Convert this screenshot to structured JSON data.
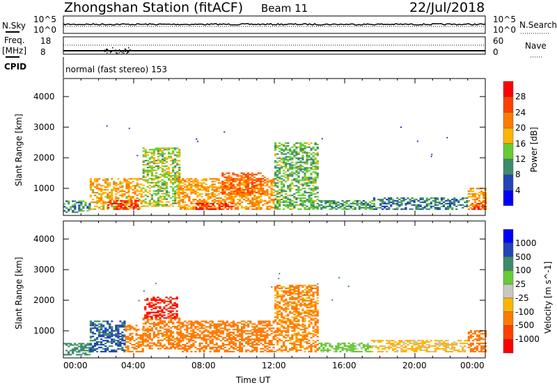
{
  "header": {
    "title": "Zhongshan Station (fitACF)",
    "beam": "Beam 11",
    "date": "22/Jul/2018"
  },
  "nsky": {
    "left_label": "N.Sky",
    "right_label": "N.Search",
    "ytick_top": "10^5",
    "ytick_bottom": "10^0"
  },
  "freq": {
    "left_label": "Freq.",
    "unit": "[MHz]",
    "ytick_top": "18",
    "ytick_bottom": "8",
    "right_label": "Nave",
    "rtick_top": "60",
    "rtick_bottom": "0"
  },
  "cpid": {
    "label": "CPID",
    "value": "normal (fast stereo) 153"
  },
  "chart_data": [
    {
      "type": "heatmap",
      "name": "power",
      "ylabel": "Slant Range [km]",
      "xlabel": "Time UT",
      "xlim": [
        0,
        24
      ],
      "ylim": [
        115,
        4590
      ],
      "yticks": [
        "1000",
        "2000",
        "3000",
        "4000"
      ],
      "colorbar": {
        "label": "Power [dB]",
        "ticks": [
          "28",
          "24",
          "20",
          "16",
          "12",
          "8",
          "4"
        ],
        "colors": [
          "#0000ff",
          "#2244b4",
          "#3e8a6c",
          "#66cc33",
          "#ffb400",
          "#ff7a00",
          "#ff4000",
          "#ff0000"
        ]
      },
      "patches": [
        [
          0,
          1.5,
          200,
          600,
          10
        ],
        [
          1.5,
          4.5,
          300,
          1300,
          19
        ],
        [
          2.5,
          4.2,
          300,
          600,
          28
        ],
        [
          4.5,
          6.6,
          400,
          2300,
          15
        ],
        [
          6.5,
          12,
          300,
          1300,
          20
        ],
        [
          7.5,
          9.6,
          300,
          500,
          28
        ],
        [
          9,
          11.5,
          800,
          1500,
          24
        ],
        [
          12,
          14.5,
          300,
          2500,
          13
        ],
        [
          14.5,
          17.5,
          300,
          600,
          11
        ],
        [
          17.5,
          23,
          300,
          700,
          9
        ],
        [
          23,
          24,
          300,
          1000,
          20
        ],
        [
          23.2,
          24,
          300,
          500,
          28
        ]
      ]
    },
    {
      "type": "heatmap",
      "name": "velocity",
      "ylabel": "Slant Range [km]",
      "xlabel": "Time UT",
      "xlim": [
        0,
        24
      ],
      "ylim": [
        115,
        4590
      ],
      "yticks": [
        "1000",
        "2000",
        "3000",
        "4000"
      ],
      "colorbar": {
        "label": "Velocity [m s^-1]",
        "ticks": [
          "1000",
          "500",
          "100",
          "25",
          "-25",
          "-100",
          "-500",
          "-1000"
        ],
        "colors": [
          "#0000ff",
          "#2244b4",
          "#3e8a6c",
          "#66cc33",
          "#c8c8c0",
          "#ffb400",
          "#ff7a00",
          "#ff4000",
          "#ff0000"
        ]
      },
      "patches": [
        [
          0,
          1.5,
          200,
          600,
          200
        ],
        [
          1.5,
          3.5,
          300,
          1300,
          600
        ],
        [
          3.5,
          4.5,
          300,
          1200,
          -200
        ],
        [
          4.5,
          6.6,
          400,
          1400,
          -200
        ],
        [
          4.6,
          6.5,
          1400,
          2100,
          -1200
        ],
        [
          6.5,
          12,
          300,
          1300,
          -300
        ],
        [
          12,
          14.5,
          300,
          2500,
          -150
        ],
        [
          14.5,
          17.5,
          300,
          600,
          50
        ],
        [
          17.5,
          23,
          300,
          700,
          -50
        ],
        [
          23,
          24,
          300,
          1000,
          -300
        ]
      ]
    }
  ],
  "xaxis": {
    "ticks": [
      "00:00",
      "04:00",
      "08:00",
      "12:00",
      "16:00",
      "20:00",
      "00:00"
    ],
    "label": "Time UT"
  }
}
